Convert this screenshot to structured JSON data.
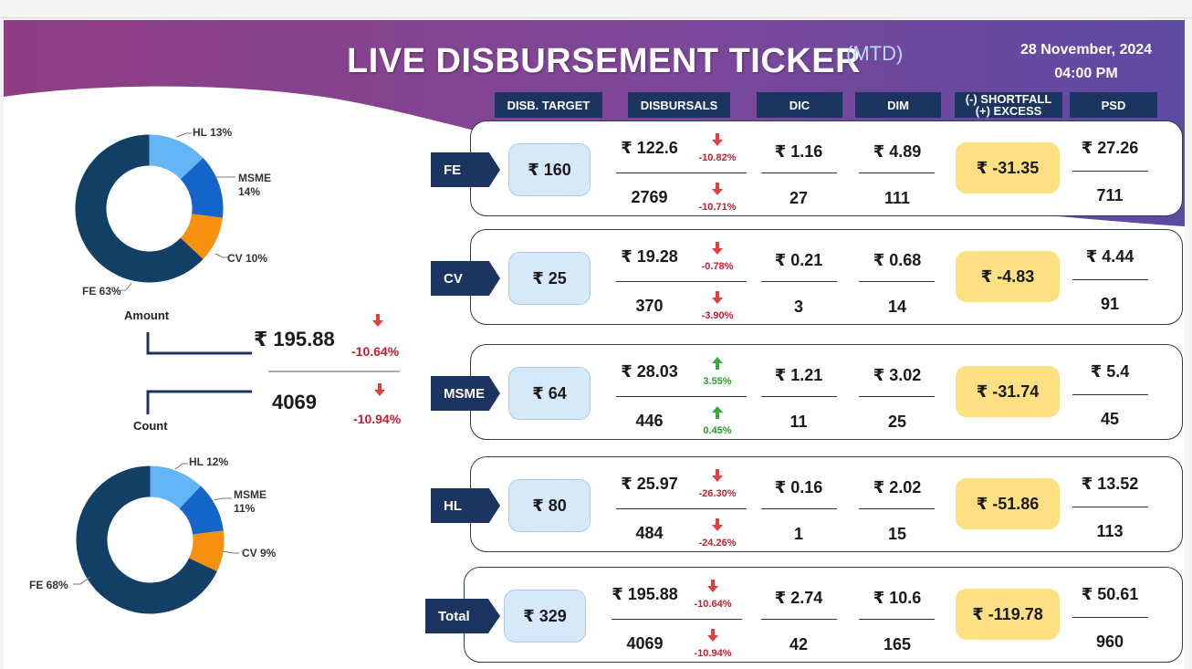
{
  "header": {
    "title": "LIVE DISBURSEMENT TICKER",
    "period": "(MTD)",
    "date": "28 November, 2024",
    "time": "04:00 PM"
  },
  "columns": {
    "target": "DISB. TARGET",
    "disbursals": "DISBURSALS",
    "dic": "DIC",
    "dim": "DIM",
    "shortfall_1": "(-) SHORTFALL",
    "shortfall_2": "(+) EXCESS",
    "psd": "PSD"
  },
  "rows": [
    {
      "label": "FE",
      "target": "₹ 160",
      "amount": "₹ 122.6",
      "amount_change": "-10.82%",
      "amount_dir": "down",
      "count": "2769",
      "count_change": "-10.71%",
      "count_dir": "down",
      "dic_amount": "₹ 1.16",
      "dic_count": "27",
      "dim_amount": "₹ 4.89",
      "dim_count": "111",
      "shortfall": "₹ -31.35",
      "psd_amount": "₹ 27.26",
      "psd_count": "711"
    },
    {
      "label": "CV",
      "target": "₹ 25",
      "amount": "₹ 19.28",
      "amount_change": "-0.78%",
      "amount_dir": "down",
      "count": "370",
      "count_change": "-3.90%",
      "count_dir": "down",
      "dic_amount": "₹ 0.21",
      "dic_count": "3",
      "dim_amount": "₹ 0.68",
      "dim_count": "14",
      "shortfall": "₹ -4.83",
      "psd_amount": "₹ 4.44",
      "psd_count": "91"
    },
    {
      "label": "MSME",
      "target": "₹ 64",
      "amount": "₹ 28.03",
      "amount_change": "3.55%",
      "amount_dir": "up",
      "count": "446",
      "count_change": "0.45%",
      "count_dir": "up",
      "dic_amount": "₹ 1.21",
      "dic_count": "11",
      "dim_amount": "₹ 3.02",
      "dim_count": "25",
      "shortfall": "₹ -31.74",
      "psd_amount": "₹ 5.4",
      "psd_count": "45"
    },
    {
      "label": "HL",
      "target": "₹ 80",
      "amount": "₹ 25.97",
      "amount_change": "-26.30%",
      "amount_dir": "down",
      "count": "484",
      "count_change": "-24.26%",
      "count_dir": "down",
      "dic_amount": "₹ 0.16",
      "dic_count": "1",
      "dim_amount": "₹ 2.02",
      "dim_count": "15",
      "shortfall": "₹ -51.86",
      "psd_amount": "₹ 13.52",
      "psd_count": "113"
    },
    {
      "label": "Total",
      "target": "₹ 329",
      "amount": "₹ 195.88",
      "amount_change": "-10.64%",
      "amount_dir": "down",
      "count": "4069",
      "count_change": "-10.94%",
      "count_dir": "down",
      "dic_amount": "₹ 2.74",
      "dic_count": "42",
      "dim_amount": "₹ 10.6",
      "dim_count": "165",
      "shortfall": "₹ -119.78",
      "psd_amount": "₹ 50.61",
      "psd_count": "960"
    }
  ],
  "summary": {
    "amount_label": "Amount",
    "count_label": "Count",
    "amount": "₹ 195.88",
    "amount_change": "-10.64%",
    "count": "4069",
    "count_change": "-10.94%"
  },
  "colors": {
    "FE": "#123f66",
    "CV": "#f6900f",
    "MSME": "#1565c8",
    "HL": "#64b5f6",
    "navy": "#1b3560",
    "negative": "#c21f2f",
    "positive": "#2e9a2e"
  },
  "chart_data": [
    {
      "type": "pie",
      "title": "Amount",
      "categories": [
        "HL",
        "MSME",
        "CV",
        "FE"
      ],
      "values": [
        13,
        14,
        10,
        63
      ],
      "labels": [
        "HL 13%",
        "MSME 14%",
        "CV 10%",
        "FE 63%"
      ],
      "unit": "%"
    },
    {
      "type": "pie",
      "title": "Count",
      "categories": [
        "HL",
        "MSME",
        "CV",
        "FE"
      ],
      "values": [
        12,
        11,
        9,
        68
      ],
      "labels": [
        "HL 12%",
        "MSME 11%",
        "CV 9%",
        "FE 68%"
      ],
      "unit": "%"
    }
  ]
}
